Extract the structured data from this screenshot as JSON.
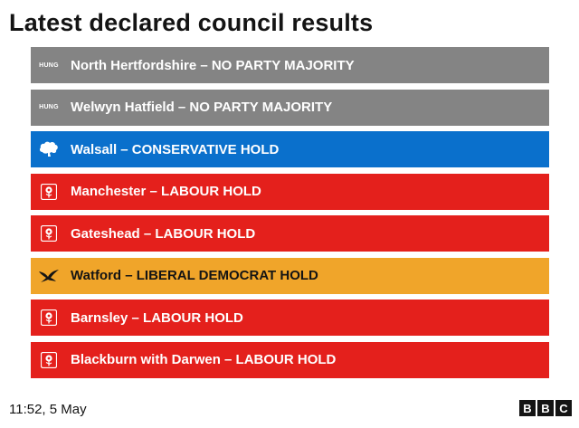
{
  "title": "Latest declared council results",
  "colors": {
    "hung": "#848484",
    "conservative": "#0a70cc",
    "labour": "#e4201c",
    "libdem": "#f0a52a"
  },
  "results": [
    {
      "party": "hung",
      "icon": "hung-badge",
      "icon_text": "HUNG",
      "label": "North Hertfordshire – NO PARTY MAJORITY"
    },
    {
      "party": "hung",
      "icon": "hung-badge",
      "icon_text": "HUNG",
      "label": "Welwyn Hatfield – NO PARTY MAJORITY"
    },
    {
      "party": "conservative",
      "icon": "conservative-tree-icon",
      "label": "Walsall – CONSERVATIVE HOLD"
    },
    {
      "party": "labour",
      "icon": "labour-rose-icon",
      "label": "Manchester – LABOUR HOLD"
    },
    {
      "party": "labour",
      "icon": "labour-rose-icon",
      "label": "Gateshead – LABOUR HOLD"
    },
    {
      "party": "libdem",
      "icon": "libdem-bird-icon",
      "label": "Watford – LIBERAL DEMOCRAT HOLD"
    },
    {
      "party": "labour",
      "icon": "labour-rose-icon",
      "label": "Barnsley – LABOUR HOLD"
    },
    {
      "party": "labour",
      "icon": "labour-rose-icon",
      "label": "Blackburn with Darwen – LABOUR HOLD"
    }
  ],
  "footer": {
    "timestamp": "11:52,  5 May",
    "logo_letters": [
      "B",
      "B",
      "C"
    ]
  }
}
